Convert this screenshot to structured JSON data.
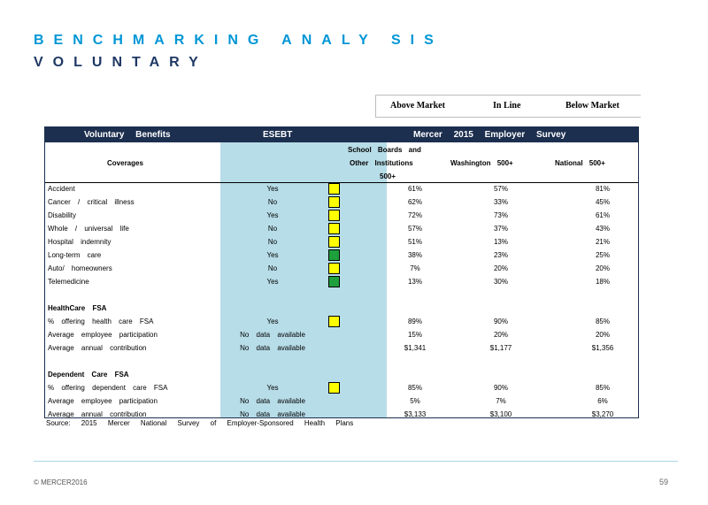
{
  "title": {
    "line1": "BENCHMARKING ANALY SIS",
    "line2": "VOLUNTARY"
  },
  "legend": {
    "above": "Above   Market",
    "inline": "In Line",
    "below": "Below     Market"
  },
  "table_header": {
    "benefits": "Voluntary Benefits",
    "esebt": "ESEBT",
    "survey": "Mercer 2015 Employer Survey"
  },
  "subheader": {
    "coverages": "Coverages",
    "sb_line1": "School Boards and",
    "sb_line2": "Other Institutions",
    "sb_line3": "500+",
    "wa": "Washington 500+",
    "na": "National 500+"
  },
  "colors": {
    "yellow": "#ffff00",
    "green": "#1ea03c",
    "navy": "#1c2f4f",
    "shade": "#b7dde8"
  },
  "rows": [
    {
      "label": "Accident",
      "esebt": "Yes",
      "status": "yellow",
      "sb": "61%",
      "wa": "57%",
      "na": "81%"
    },
    {
      "label": "Cancer / critical illness",
      "esebt": "No",
      "status": "yellow",
      "sb": "62%",
      "wa": "33%",
      "na": "45%"
    },
    {
      "label": "Disability",
      "esebt": "Yes",
      "status": "yellow",
      "sb": "72%",
      "wa": "73%",
      "na": "61%"
    },
    {
      "label": "Whole / universal life",
      "esebt": "No",
      "status": "yellow",
      "sb": "57%",
      "wa": "37%",
      "na": "43%"
    },
    {
      "label": "Hospital indemnity",
      "esebt": "No",
      "status": "yellow",
      "sb": "51%",
      "wa": "13%",
      "na": "21%"
    },
    {
      "label": "Long-term care",
      "esebt": "Yes",
      "status": "green",
      "sb": "38%",
      "wa": "23%",
      "na": "25%"
    },
    {
      "label": "Auto/ homeowners",
      "esebt": "No",
      "status": "yellow",
      "sb": "7%",
      "wa": "20%",
      "na": "20%"
    },
    {
      "label": "Telemedicine",
      "esebt": "Yes",
      "status": "green",
      "sb": "13%",
      "wa": "30%",
      "na": "18%"
    },
    {
      "label": "",
      "esebt": "",
      "status": "",
      "sb": "",
      "wa": "",
      "na": ""
    },
    {
      "label": "HealthCare FSA",
      "section": true,
      "esebt": "",
      "status": "",
      "sb": "",
      "wa": "",
      "na": ""
    },
    {
      "label": "% offering health care FSA",
      "esebt": "Yes",
      "status": "yellow",
      "sb": "89%",
      "wa": "90%",
      "na": "85%"
    },
    {
      "label": "Average employee participation",
      "esebt": "No data available",
      "status": "",
      "sb": "15%",
      "wa": "20%",
      "na": "20%"
    },
    {
      "label": "Average annual contribution",
      "esebt": "No data available",
      "status": "",
      "sb": "$1,341",
      "wa": "$1,177",
      "na": "$1,356"
    },
    {
      "label": "",
      "esebt": "",
      "status": "",
      "sb": "",
      "wa": "",
      "na": ""
    },
    {
      "label": "Dependent Care FSA",
      "section": true,
      "esebt": "",
      "status": "",
      "sb": "",
      "wa": "",
      "na": ""
    },
    {
      "label": "% offering dependent care FSA",
      "esebt": "Yes",
      "status": "yellow",
      "sb": "85%",
      "wa": "90%",
      "na": "85%"
    },
    {
      "label": "Average employee participation",
      "esebt": "No data available",
      "status": "",
      "sb": "5%",
      "wa": "7%",
      "na": "6%"
    },
    {
      "label": "Average annual contribution",
      "esebt": "No data available",
      "status": "",
      "sb": "$3,133",
      "wa": "$3,100",
      "na": "$3,270"
    }
  ],
  "source": "Source: 2015 Mercer National Survey of Employer-Sponsored Health Plans",
  "footer": {
    "copyright": "© MERCER2016",
    "page": "59"
  }
}
